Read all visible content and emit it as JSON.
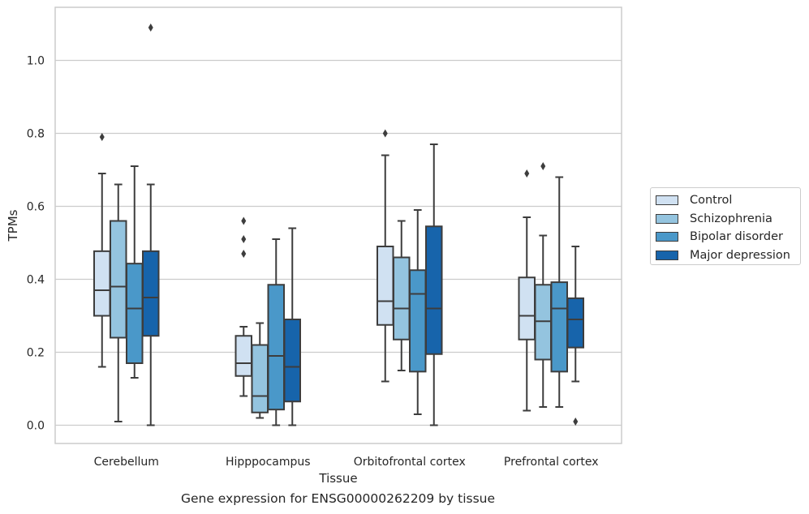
{
  "caption": "Gene expression for ENSG00000262209 by tissue",
  "chart_data": {
    "type": "boxplot",
    "xlabel": "Tissue",
    "ylabel": "TPMs",
    "ylim": [
      -0.05,
      1.15
    ],
    "yticks": [
      "0.0",
      "0.2",
      "0.4",
      "0.6",
      "0.8",
      "1.0"
    ],
    "ytick_values": [
      0.0,
      0.2,
      0.4,
      0.6,
      0.8,
      1.0
    ],
    "grid": true,
    "legend_position": "right",
    "categories": [
      "Cerebellum",
      "Hipppocampus",
      "Orbitofrontal cortex",
      "Prefrontal cortex"
    ],
    "series": [
      {
        "name": "Control",
        "color": "#d0e1f2",
        "boxes": [
          {
            "whislo": 0.16,
            "q1": 0.3,
            "med": 0.37,
            "q3": 0.477,
            "whishi": 0.69,
            "fliers": [
              0.79
            ]
          },
          {
            "whislo": 0.08,
            "q1": 0.135,
            "med": 0.17,
            "q3": 0.245,
            "whishi": 0.27,
            "fliers": [
              0.47,
              0.51,
              0.56
            ]
          },
          {
            "whislo": 0.12,
            "q1": 0.275,
            "med": 0.34,
            "q3": 0.49,
            "whishi": 0.74,
            "fliers": [
              0.8
            ]
          },
          {
            "whislo": 0.04,
            "q1": 0.235,
            "med": 0.3,
            "q3": 0.405,
            "whishi": 0.57,
            "fliers": [
              0.69
            ]
          }
        ]
      },
      {
        "name": "Schizophrenia",
        "color": "#94c4df",
        "boxes": [
          {
            "whislo": 0.01,
            "q1": 0.24,
            "med": 0.38,
            "q3": 0.56,
            "whishi": 0.66,
            "fliers": []
          },
          {
            "whislo": 0.02,
            "q1": 0.035,
            "med": 0.08,
            "q3": 0.22,
            "whishi": 0.28,
            "fliers": []
          },
          {
            "whislo": 0.15,
            "q1": 0.235,
            "med": 0.32,
            "q3": 0.46,
            "whishi": 0.56,
            "fliers": []
          },
          {
            "whislo": 0.05,
            "q1": 0.18,
            "med": 0.285,
            "q3": 0.385,
            "whishi": 0.52,
            "fliers": [
              0.71
            ]
          }
        ]
      },
      {
        "name": "Bipolar disorder",
        "color": "#4a98c9",
        "boxes": [
          {
            "whislo": 0.13,
            "q1": 0.17,
            "med": 0.32,
            "q3": 0.443,
            "whishi": 0.71,
            "fliers": []
          },
          {
            "whislo": 0.0,
            "q1": 0.043,
            "med": 0.19,
            "q3": 0.385,
            "whishi": 0.51,
            "fliers": []
          },
          {
            "whislo": 0.03,
            "q1": 0.147,
            "med": 0.36,
            "q3": 0.425,
            "whishi": 0.59,
            "fliers": []
          },
          {
            "whislo": 0.05,
            "q1": 0.147,
            "med": 0.32,
            "q3": 0.392,
            "whishi": 0.68,
            "fliers": []
          }
        ]
      },
      {
        "name": "Major depression",
        "color": "#1764ab",
        "boxes": [
          {
            "whislo": 0.0,
            "q1": 0.245,
            "med": 0.35,
            "q3": 0.477,
            "whishi": 0.66,
            "fliers": [
              1.09
            ]
          },
          {
            "whislo": 0.0,
            "q1": 0.065,
            "med": 0.16,
            "q3": 0.29,
            "whishi": 0.54,
            "fliers": []
          },
          {
            "whislo": 0.0,
            "q1": 0.195,
            "med": 0.32,
            "q3": 0.545,
            "whishi": 0.77,
            "fliers": []
          },
          {
            "whislo": 0.12,
            "q1": 0.213,
            "med": 0.29,
            "q3": 0.348,
            "whishi": 0.49,
            "fliers": [
              0.01
            ]
          }
        ]
      }
    ]
  }
}
